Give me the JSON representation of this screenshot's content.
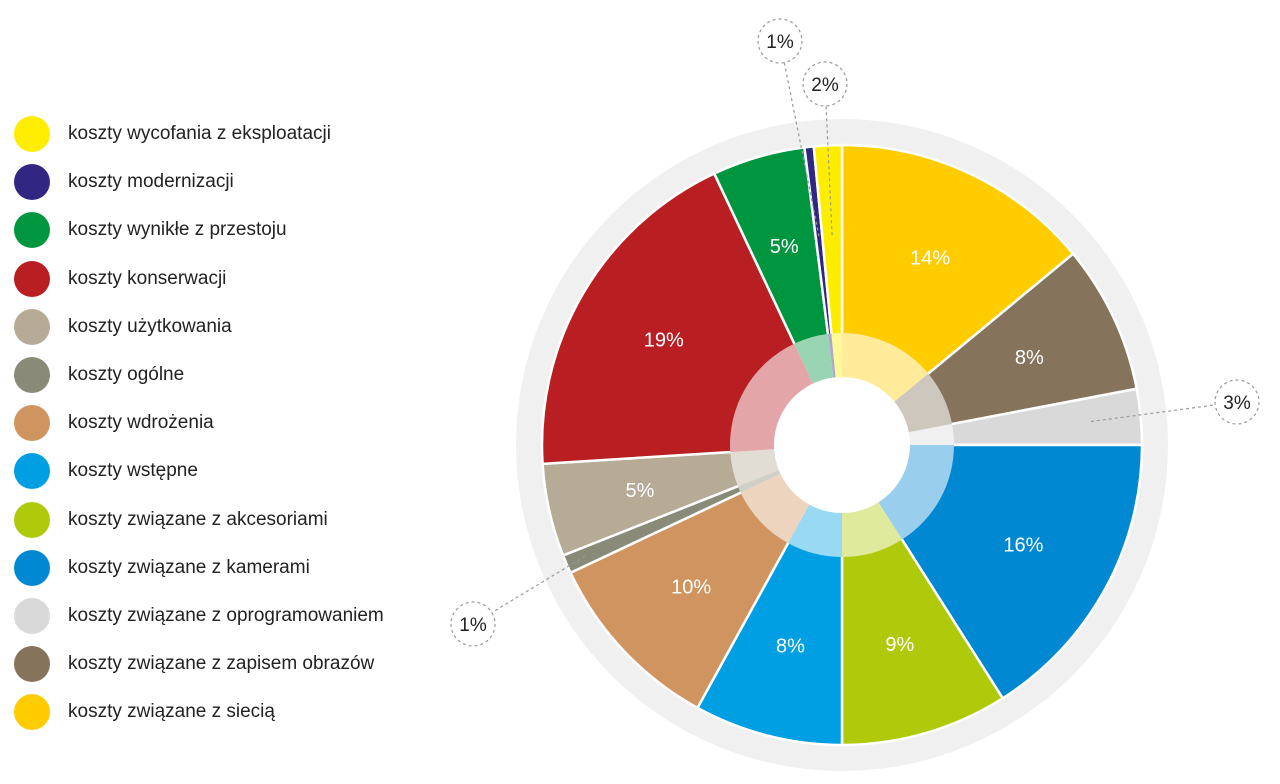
{
  "chart_data": {
    "type": "pie",
    "variant": "donut-with-inner-ring",
    "start": "top",
    "direction": "clockwise",
    "slices": [
      {
        "label": "koszty związane z siecią",
        "value": 14,
        "display": "14%",
        "color": "#ffcc00",
        "label_style": "inside"
      },
      {
        "label": "koszty związane z zapisem obrazów",
        "value": 8,
        "display": "8%",
        "color": "#85735c",
        "label_style": "inside"
      },
      {
        "label": "koszty związane z oprogramowaniem",
        "value": 3,
        "display": "3%",
        "color": "#d9d9d9",
        "label_style": "callout"
      },
      {
        "label": "koszty związane z kamerami",
        "value": 16,
        "display": "16%",
        "color": "#0088d2",
        "label_style": "inside"
      },
      {
        "label": "koszty związane z akcesoriami",
        "value": 9,
        "display": "9%",
        "color": "#afca0b",
        "label_style": "inside"
      },
      {
        "label": "koszty wstępne",
        "value": 8,
        "display": "8%",
        "color": "#009fe3",
        "label_style": "inside"
      },
      {
        "label": "koszty wdrożenia",
        "value": 10,
        "display": "10%",
        "color": "#d09460",
        "label_style": "inside"
      },
      {
        "label": "koszty ogólne",
        "value": 1,
        "display": "1%",
        "color": "#8a8a78",
        "label_style": "callout"
      },
      {
        "label": "koszty użytkowania",
        "value": 5,
        "display": "5%",
        "color": "#b5ab97",
        "label_style": "inside"
      },
      {
        "label": "koszty konserwacji",
        "value": 19,
        "display": "19%",
        "color": "#b81e22",
        "label_style": "inside"
      },
      {
        "label": "koszty wynikłe z przestoju",
        "value": 5,
        "display": "5%",
        "color": "#009640",
        "label_style": "inside"
      },
      {
        "label": "koszty modernizacji",
        "value": 0.5,
        "display": "1%",
        "color": "#312783",
        "label_style": "callout"
      },
      {
        "label": "koszty wycofania z eksploatacji",
        "value": 1.5,
        "display": "2%",
        "color": "#ffed00",
        "label_style": "callout"
      }
    ],
    "legend": {
      "placement": "left",
      "entries": [
        {
          "label": "koszty wycofania z eksploatacji",
          "color": "#ffed00"
        },
        {
          "label": "koszty modernizacji",
          "color": "#312783"
        },
        {
          "label": "koszty wynikłe z przestoju",
          "color": "#009640"
        },
        {
          "label": "koszty konserwacji",
          "color": "#b81e22"
        },
        {
          "label": "koszty użytkowania",
          "color": "#b5ab97"
        },
        {
          "label": "koszty ogólne",
          "color": "#8a8a78"
        },
        {
          "label": "koszty wdrożenia",
          "color": "#d09460"
        },
        {
          "label": "koszty wstępne",
          "color": "#009fe3"
        },
        {
          "label": "koszty związane z akcesoriami",
          "color": "#afca0b"
        },
        {
          "label": "koszty związane z kamerami",
          "color": "#0088d2"
        },
        {
          "label": "koszty związane z oprogramowaniem",
          "color": "#d9d9d9"
        },
        {
          "label": "koszty związane z zapisem obrazów",
          "color": "#85735c"
        },
        {
          "label": "koszty związane z siecią",
          "color": "#ffcc00"
        }
      ]
    }
  }
}
